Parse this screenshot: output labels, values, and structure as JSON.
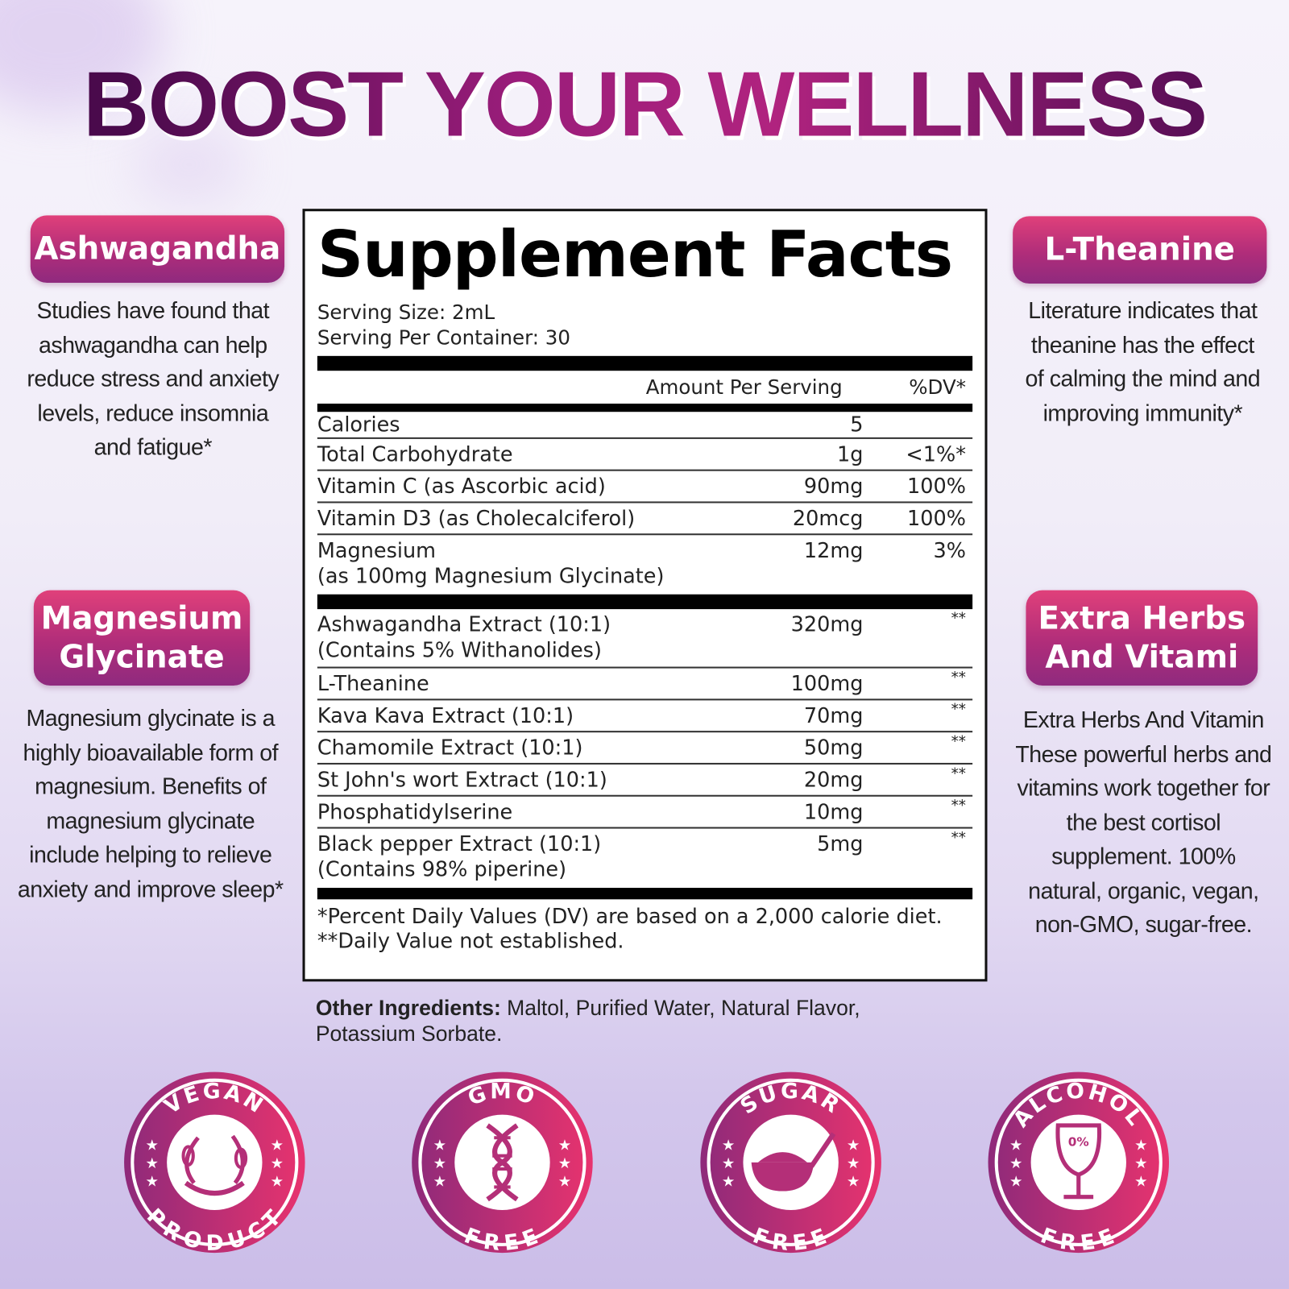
{
  "title": "BOOST YOUR WELLNESS",
  "colors": {
    "title_dark": "#4a0a4c",
    "title_mid": "#b0237f",
    "pill_pink": "#e0407a",
    "pill_purple": "#8f2a7e",
    "badge_left": "#8e2a7a",
    "badge_right": "#e8336e"
  },
  "left": [
    {
      "label": "Ashwagandha",
      "text": "Studies have found that ashwagandha can help reduce stress and anxiety levels, reduce insomnia and fatigue*"
    },
    {
      "label": "Magnesium Glycinate",
      "text": "Magnesium glycinate is a highly bioavailable form of magnesium. Benefits of magnesium glycinate include helping to relieve anxiety and improve sleep*"
    }
  ],
  "right": [
    {
      "label": "L-Theanine",
      "text": "Literature indicates that theanine has the effect of calming the mind and improving immunity*"
    },
    {
      "label": "Extra Herbs And Vitami",
      "text": "Extra Herbs And Vitamin These powerful herbs and vitamins work together for the best cortisol supplement. 100% natural, organic, vegan, non-GMO, sugar-free."
    }
  ],
  "facts": {
    "heading": "Supplement Facts",
    "serving_size": "Serving Size: 2mL",
    "servings": "Serving Per Container: 30",
    "col_amount": "Amount Per Serving",
    "col_dv": "%DV*",
    "group1": [
      {
        "name": "Calories",
        "amount": "5",
        "dv": ""
      },
      {
        "name": "Total Carbohydrate",
        "amount": "1g",
        "dv": "<1%*"
      },
      {
        "name": "Vitamin C (as Ascorbic acid)",
        "amount": "90mg",
        "dv": "100%"
      },
      {
        "name": "Vitamin D3 (as Cholecalciferol)",
        "amount": "20mcg",
        "dv": "100%"
      },
      {
        "name": "Magnesium",
        "sub": "(as 100mg Magnesium Glycinate)",
        "amount": "12mg",
        "dv": "3%"
      }
    ],
    "group2": [
      {
        "name": "Ashwagandha Extract (10:1)",
        "sub": "(Contains 5% Withanolides)",
        "amount": "320mg",
        "dv": "**"
      },
      {
        "name": "L-Theanine",
        "amount": "100mg",
        "dv": "**"
      },
      {
        "name": "Kava Kava Extract (10:1)",
        "amount": "70mg",
        "dv": "**"
      },
      {
        "name": "Chamomile Extract (10:1)",
        "amount": "50mg",
        "dv": "**"
      },
      {
        "name": "St John's wort Extract (10:1)",
        "amount": "20mg",
        "dv": "**"
      },
      {
        "name": "Phosphatidylserine",
        "amount": "10mg",
        "dv": "**"
      },
      {
        "name": "Black pepper Extract (10:1)",
        "sub": "(Contains 98% piperine)",
        "amount": "5mg",
        "dv": "**"
      }
    ],
    "footnote1": "*Percent Daily Values (DV) are based on a 2,000 calorie diet.",
    "footnote2": "**Daily Value not established."
  },
  "other": {
    "label": "Other Ingredients:",
    "text": " Maltol, Purified Water, Natural Flavor,",
    "text2": "Potassium Sorbate."
  },
  "badges": [
    {
      "top": "VEGAN",
      "bottom": "PRODUCT",
      "icon": "leaf-wreath-icon"
    },
    {
      "top": "GMO",
      "bottom": "FREE",
      "icon": "dna-icon"
    },
    {
      "top": "SUGAR",
      "bottom": "FREE",
      "icon": "sugar-bowl-spoon-icon"
    },
    {
      "top": "ALCOHOL",
      "bottom": "FREE",
      "icon": "wine-glass-0-percent-icon",
      "icon_text": "0%"
    }
  ]
}
